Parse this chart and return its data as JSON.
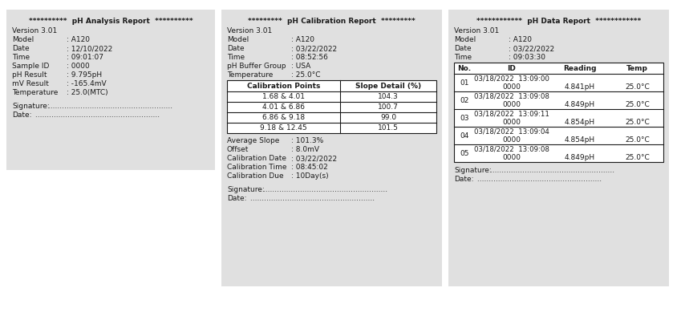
{
  "bg_color": "#ffffff",
  "panel_bg": "#e0e0e0",
  "font_color": "#1a1a1a",
  "font_size": 6.5,
  "panel1": {
    "title": "**********  pH Analysis Report  **********",
    "version": "Version 3.01",
    "fields": [
      [
        "Model",
        ": A120"
      ],
      [
        "Date",
        ": 12/10/2022"
      ],
      [
        "Time",
        ": 09:01:07"
      ],
      [
        "Sample ID",
        ": 0000"
      ],
      [
        "pH Result",
        ": 9.795pH"
      ],
      [
        "mV Result",
        ": -165.4mV"
      ],
      [
        "Temperature",
        ": 25.0(MTC)"
      ]
    ],
    "signature_label": "Signature:",
    "date_label": "Date:"
  },
  "panel2": {
    "title": "*********  pH Calibration Report  *********",
    "version": "Version 3.01",
    "fields": [
      [
        "Model",
        ": A120"
      ],
      [
        "Date",
        ": 03/22/2022"
      ],
      [
        "Time",
        ": 08:52:56"
      ],
      [
        "pH Buffer Group",
        ": USA"
      ],
      [
        "Temperature",
        ": 25.0°C"
      ]
    ],
    "table_headers": [
      "Calibration Points",
      "Slope Detail (%)"
    ],
    "table_rows": [
      [
        "1.68 & 4.01",
        "104.3"
      ],
      [
        "4.01 & 6.86",
        "100.7"
      ],
      [
        "6.86 & 9.18",
        "99.0"
      ],
      [
        "9.18 & 12.45",
        "101.5"
      ]
    ],
    "after_fields": [
      [
        "Average Slope",
        ": 101.3%"
      ],
      [
        "Offset",
        ": 8.0mV"
      ],
      [
        "Calibration Date",
        ": 03/22/2022"
      ],
      [
        "Calibration Time",
        ": 08:45:02"
      ],
      [
        "Calibration Due",
        ": 10Day(s)"
      ]
    ],
    "signature_label": "Signature:",
    "date_label": "Date:"
  },
  "panel3": {
    "title": "************  pH Data Report  ************",
    "version": "Version 3.01",
    "fields": [
      [
        "Model",
        ": A120"
      ],
      [
        "Date",
        ": 03/22/2022"
      ],
      [
        "Time",
        ": 09:03:30"
      ]
    ],
    "table_headers": [
      "No.",
      "ID",
      "Reading",
      "Temp"
    ],
    "data_entries": [
      {
        "no": "01",
        "date": "03/18/2022",
        "time": "13:09:00",
        "id": "0000",
        "reading": "4.841pH",
        "temp": "25.0°C"
      },
      {
        "no": "02",
        "date": "03/18/2022",
        "time": "13:09:08",
        "id": "0000",
        "reading": "4.849pH",
        "temp": "25.0°C"
      },
      {
        "no": "03",
        "date": "03/18/2022",
        "time": "13:09:11",
        "id": "0000",
        "reading": "4.854pH",
        "temp": "25.0°C"
      },
      {
        "no": "04",
        "date": "03/18/2022",
        "time": "13:09:04",
        "id": "0000",
        "reading": "4.854pH",
        "temp": "25.0°C"
      },
      {
        "no": "05",
        "date": "03/18/2022",
        "time": "13:09:08",
        "id": "0000",
        "reading": "4.849pH",
        "temp": "25.0°C"
      }
    ],
    "signature_label": "Signature:",
    "date_label": "Date:"
  }
}
